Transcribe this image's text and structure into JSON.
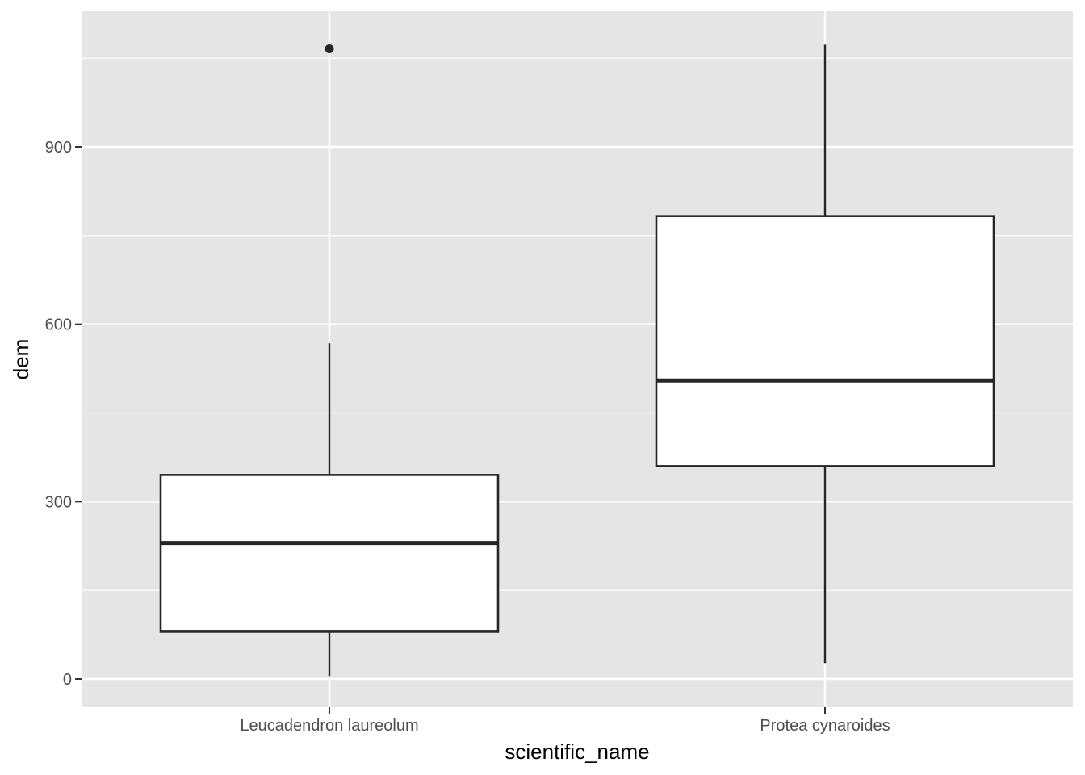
{
  "chart_data": {
    "type": "box",
    "title": "",
    "xlabel": "scientific_name",
    "ylabel": "dem",
    "ylim": [
      -50,
      1175
    ],
    "yticks": [
      0,
      300,
      600,
      900
    ],
    "ytick_labels": [
      "0",
      "300",
      "600",
      "900"
    ],
    "grid": true,
    "categories": [
      "Leucadendron laureolum",
      "Protea cynaroides"
    ],
    "boxes": [
      {
        "category": "Leucadendron laureolum",
        "whisker_low": 5,
        "q1": 80,
        "median": 230,
        "q3": 345,
        "whisker_high": 568,
        "outliers": [
          1066
        ]
      },
      {
        "category": "Protea cynaroides",
        "whisker_low": 27,
        "q1": 360,
        "median": 505,
        "q3": 783,
        "whisker_high": 1073,
        "outliers": []
      }
    ],
    "colors": {
      "panel_bg": "#e5e5e5",
      "grid": "#ffffff",
      "box_fill": "#ffffff",
      "box_stroke": "#262626"
    }
  }
}
